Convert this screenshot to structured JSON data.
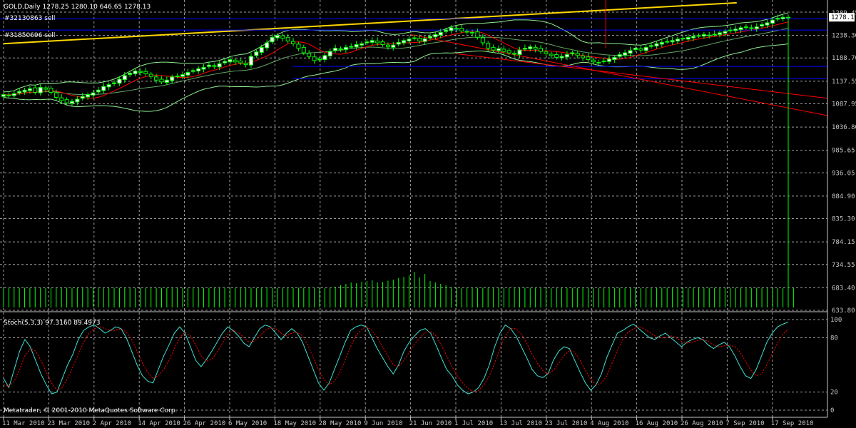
{
  "window": {
    "header": "GOLD,Daily  1278.25 1280.10 646.65 1278.13",
    "order_label_1": "#32130863 sell",
    "order_label_2": "#31850696 sell",
    "copyright": "Metatrader, © 2001-2010 MetaQuotes Software Corp."
  },
  "colors": {
    "background": "#000000",
    "grid": "#c8c8c8",
    "bull_candle": "#ffffff",
    "bear_candle": "#000000",
    "candle_outline": "#00ff00",
    "ma_fast": "#ff0000",
    "bollinger": "#90ee90",
    "trend_yellow": "#ffd700",
    "levels_blue": "#0000ff",
    "channel_red": "#ff0000",
    "volume": "#00ff00",
    "stoch_main": "#40e0d0",
    "stoch_signal": "#ff0000",
    "price_tag_bg": "#ffffff"
  },
  "chart_data": [
    {
      "type": "candlestick",
      "symbol": "GOLD",
      "timeframe": "Daily",
      "header_values": {
        "open": 1278.25,
        "high": 1280.1,
        "low": 646.65,
        "close": 1278.13
      },
      "y_ticks": [
        1289.45,
        1238.3,
        1188.7,
        1137.55,
        1087.95,
        1036.8,
        985.65,
        936.05,
        884.9,
        835.3,
        784.15,
        734.55,
        683.4,
        633.8
      ],
      "current_price_label": "1278.13",
      "top_price_label": "1289.45",
      "x_ticks": [
        "11 Mar 2010",
        "23 Mar 2010",
        "2 Apr 2010",
        "14 Apr 2010",
        "26 Apr 2010",
        "6 May 2010",
        "18 May 2010",
        "28 May 2010",
        "9 Jun 2010",
        "21 Jun 2010",
        "1 Jul 2010",
        "13 Jul 2010",
        "23 Jul 2010",
        "4 Aug 2010",
        "16 Aug 2010",
        "26 Aug 2010",
        "7 Sep 2010",
        "17 Sep 2010"
      ],
      "ylim": [
        633.8,
        1289.45
      ],
      "grid": true,
      "closes": [
        1108,
        1107,
        1110,
        1115,
        1118,
        1121,
        1113,
        1124,
        1120,
        1113,
        1102,
        1095,
        1090,
        1093,
        1098,
        1104,
        1108,
        1112,
        1118,
        1126,
        1130,
        1134,
        1142,
        1150,
        1155,
        1160,
        1157,
        1154,
        1148,
        1140,
        1136,
        1140,
        1147,
        1149,
        1152,
        1157,
        1161,
        1165,
        1168,
        1173,
        1170,
        1176,
        1181,
        1185,
        1180,
        1178,
        1174,
        1192,
        1202,
        1212,
        1222,
        1234,
        1238,
        1232,
        1226,
        1220,
        1210,
        1200,
        1192,
        1183,
        1186,
        1194,
        1203,
        1210,
        1208,
        1212,
        1214,
        1218,
        1220,
        1224,
        1227,
        1222,
        1218,
        1213,
        1217,
        1223,
        1227,
        1230,
        1233,
        1226,
        1231,
        1236,
        1240,
        1245,
        1250,
        1255,
        1252,
        1248,
        1246,
        1244,
        1234,
        1222,
        1210,
        1206,
        1209,
        1203,
        1200,
        1197,
        1206,
        1210,
        1213,
        1208,
        1203,
        1198,
        1194,
        1190,
        1192,
        1196,
        1200,
        1194,
        1189,
        1185,
        1180,
        1179,
        1182,
        1186,
        1190,
        1196,
        1200,
        1205,
        1210,
        1206,
        1212,
        1216,
        1220,
        1223,
        1225,
        1227,
        1230,
        1231,
        1234,
        1236,
        1238,
        1240,
        1239,
        1241,
        1244,
        1247,
        1250,
        1252,
        1255,
        1256,
        1254,
        1257,
        1262,
        1266,
        1272,
        1276,
        1278,
        1278.13
      ],
      "volume_relative": [
        0.55,
        0.55,
        0.55,
        0.55,
        0.55,
        0.55,
        0.55,
        0.55,
        0.55,
        0.55,
        0.55,
        0.55,
        0.55,
        0.55,
        0.55,
        0.55,
        0.55,
        0.55,
        0.55,
        0.55,
        0.55,
        0.55,
        0.55,
        0.55,
        0.55,
        0.55,
        0.55,
        0.55,
        0.55,
        0.55,
        0.55,
        0.55,
        0.55,
        0.55,
        0.55,
        0.55,
        0.55,
        0.55,
        0.55,
        0.55,
        0.55,
        0.55,
        0.55,
        0.55,
        0.55,
        0.55,
        0.55,
        0.55,
        0.55,
        0.55,
        0.55,
        0.55,
        0.55,
        0.55,
        0.55,
        0.55,
        0.55,
        0.55,
        0.55,
        0.55,
        0.55,
        0.55,
        0.55,
        0.58,
        0.62,
        0.66,
        0.7,
        0.68,
        0.72,
        0.74,
        0.76,
        0.7,
        0.72,
        0.75,
        0.78,
        0.82,
        0.86,
        0.9,
        1.0,
        0.84,
        0.94,
        0.74,
        0.7,
        0.66,
        0.62,
        0.58,
        0.55,
        0.55,
        0.55,
        0.55,
        0.55,
        0.55,
        0.55,
        0.55,
        0.55,
        0.55,
        0.55,
        0.55,
        0.55,
        0.55,
        0.55,
        0.55,
        0.55,
        0.55,
        0.55,
        0.55,
        0.55,
        0.55,
        0.55,
        0.55,
        0.55,
        0.55,
        0.55,
        0.55,
        0.55,
        0.55,
        0.55,
        0.55,
        0.55,
        0.55,
        0.55,
        0.55,
        0.55,
        0.55,
        0.55,
        0.55,
        0.55,
        0.55,
        0.55,
        0.55,
        0.55,
        0.55,
        0.55,
        0.55,
        0.55,
        0.55,
        0.55,
        0.55,
        0.55,
        0.55,
        0.55,
        0.55,
        0.55,
        0.55,
        0.55,
        0.55,
        0.55,
        0.55,
        0.55,
        0.55,
        0.55
      ],
      "trendline_yellow": {
        "start": {
          "date": "11 Mar 2010",
          "price": 1220
        },
        "end": {
          "date": "17 Sep 2010",
          "price": 1310
        }
      },
      "horizontal_levels_blue": [
        1275,
        1250,
        1170,
        1143
      ],
      "channel_red_lines": [
        {
          "start": {
            "date": "21 Jun 2010",
            "price": 1240
          },
          "end": {
            "date": "17 Sep 2010",
            "price": 1062
          }
        },
        {
          "start": {
            "date": "1 Jul 2010",
            "price": 1198
          },
          "end": {
            "date": "17 Sep 2010",
            "price": 1100
          }
        }
      ]
    },
    {
      "type": "line",
      "title": "Stoch(5,3,3) 97.3160 89.4973",
      "y_ticks": [
        100,
        80,
        20,
        0
      ],
      "ylim": [
        0,
        100
      ],
      "series": [
        {
          "name": "main",
          "values": [
            35,
            25,
            45,
            65,
            78,
            70,
            55,
            40,
            28,
            18,
            20,
            35,
            50,
            62,
            78,
            88,
            92,
            94,
            90,
            85,
            88,
            92,
            90,
            80,
            65,
            50,
            38,
            32,
            30,
            45,
            60,
            72,
            85,
            92,
            85,
            70,
            55,
            48,
            56,
            65,
            75,
            85,
            92,
            88,
            82,
            74,
            70,
            80,
            90,
            94,
            92,
            85,
            78,
            85,
            90,
            85,
            75,
            60,
            45,
            30,
            22,
            30,
            45,
            60,
            75,
            88,
            92,
            94,
            92,
            80,
            68,
            58,
            48,
            40,
            50,
            65,
            75,
            82,
            88,
            90,
            85,
            72,
            58,
            45,
            38,
            28,
            22,
            18,
            20,
            25,
            35,
            50,
            70,
            85,
            94,
            90,
            82,
            70,
            58,
            45,
            38,
            36,
            40,
            55,
            65,
            70,
            68,
            55,
            42,
            30,
            22,
            28,
            40,
            58,
            72,
            85,
            88,
            92,
            95,
            90,
            85,
            80,
            78,
            82,
            85,
            80,
            75,
            70,
            75,
            78,
            80,
            78,
            72,
            68,
            72,
            75,
            70,
            60,
            48,
            38,
            35,
            45,
            60,
            75,
            85,
            92,
            95,
            97.316
          ]
        },
        {
          "name": "signal",
          "values": [
            28,
            26,
            32,
            45,
            60,
            68,
            65,
            55,
            42,
            30,
            22,
            25,
            35,
            48,
            62,
            75,
            85,
            90,
            92,
            90,
            88,
            88,
            90,
            86,
            78,
            65,
            52,
            42,
            35,
            38,
            45,
            55,
            68,
            80,
            86,
            82,
            72,
            60,
            54,
            56,
            64,
            74,
            84,
            88,
            86,
            80,
            75,
            76,
            82,
            88,
            91,
            90,
            85,
            82,
            85,
            86,
            82,
            72,
            58,
            45,
            34,
            28,
            32,
            42,
            55,
            70,
            82,
            89,
            92,
            88,
            80,
            70,
            60,
            50,
            48,
            55,
            64,
            73,
            80,
            86,
            87,
            82,
            72,
            60,
            48,
            38,
            30,
            24,
            20,
            22,
            28,
            38,
            52,
            68,
            82,
            90,
            90,
            84,
            74,
            62,
            52,
            44,
            40,
            44,
            52,
            60,
            66,
            64,
            55,
            44,
            34,
            28,
            30,
            38,
            52,
            66,
            78,
            86,
            90,
            92,
            90,
            86,
            82,
            80,
            80,
            82,
            80,
            76,
            74,
            75,
            77,
            78,
            76,
            72,
            70,
            71,
            72,
            70,
            64,
            54,
            44,
            38,
            40,
            50,
            62,
            74,
            84,
            89.4973
          ]
        }
      ]
    }
  ]
}
